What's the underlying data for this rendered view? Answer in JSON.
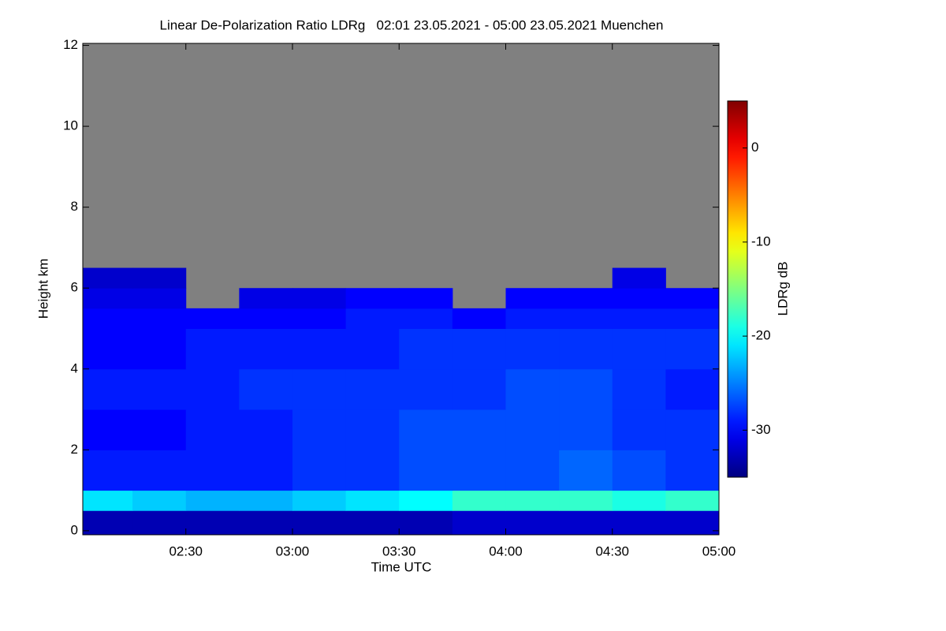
{
  "chart_data": {
    "type": "heatmap",
    "title": "Linear De-Polarization Ratio LDRg   02:01 23.05.2021 - 05:00 23.05.2021 Muenchen",
    "xlabel": "Time UTC",
    "ylabel": "Height km",
    "colorbar_label": "LDRg dB",
    "xlim": [
      121,
      300
    ],
    "xticks": [
      {
        "value": 150,
        "label": "02:30"
      },
      {
        "value": 180,
        "label": "03:00"
      },
      {
        "value": 210,
        "label": "03:30"
      },
      {
        "value": 240,
        "label": "04:00"
      },
      {
        "value": 270,
        "label": "04:30"
      },
      {
        "value": 300,
        "label": "05:00"
      }
    ],
    "ylim": [
      -0.1,
      12.05
    ],
    "yticks": [
      0,
      2,
      4,
      6,
      8,
      10,
      12
    ],
    "clim": [
      -35,
      5
    ],
    "cticks": [
      0,
      -10,
      -20,
      -30
    ],
    "colormap": "jet",
    "missing_color": "#808080",
    "xbins": [
      121,
      135,
      150,
      165,
      180,
      195,
      210,
      225,
      240,
      255,
      270,
      285,
      300
    ],
    "ybins": [
      -0.1,
      0.5,
      1,
      2,
      3,
      4,
      5,
      5.5,
      6,
      6.5,
      12.05
    ],
    "z": [
      [
        -33,
        -33,
        -33,
        -33,
        -33,
        -33,
        -33,
        -32,
        -32,
        -32,
        -32,
        -32
      ],
      [
        -21,
        -22,
        -23,
        -23,
        -22,
        -21,
        -20,
        -18,
        -18,
        -18,
        -19,
        -18
      ],
      [
        -29,
        -29,
        -29,
        -29,
        -28,
        -28,
        -27,
        -27,
        -27,
        -26,
        -27,
        -28
      ],
      [
        -30,
        -30,
        -29,
        -29,
        -28,
        -28,
        -27,
        -27,
        -27,
        -27,
        -28,
        -28
      ],
      [
        -29,
        -29,
        -29,
        -28,
        -28,
        -28,
        -28,
        -28,
        -27,
        -27,
        -28,
        -29
      ],
      [
        -30,
        -30,
        -29,
        -29,
        -29,
        -29,
        -28,
        -28,
        -28,
        -28,
        -28,
        -28
      ],
      [
        -30,
        -30,
        -30,
        -30,
        -30,
        -29,
        -29,
        -30,
        -29,
        -29,
        -29,
        -29
      ],
      [
        -31,
        -31,
        null,
        -31,
        -31,
        -30,
        -30,
        null,
        -30,
        -30,
        -30,
        -30
      ],
      [
        -32,
        -32,
        null,
        null,
        null,
        null,
        null,
        null,
        null,
        null,
        -31,
        null
      ],
      [
        null,
        null,
        null,
        null,
        null,
        null,
        null,
        null,
        null,
        null,
        null,
        null
      ]
    ]
  }
}
